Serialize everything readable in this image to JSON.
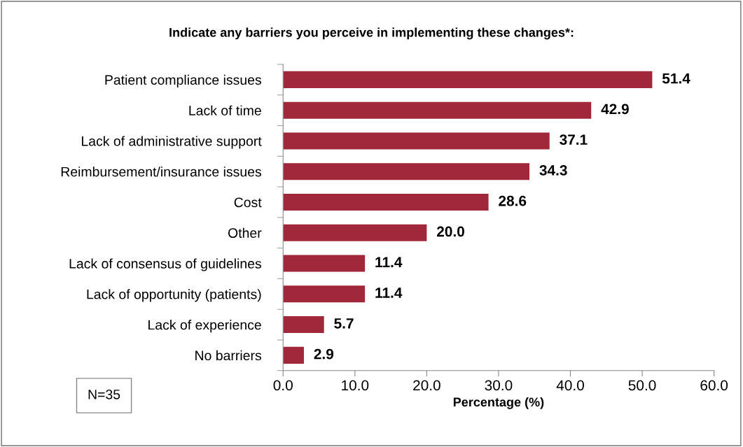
{
  "chart_data": {
    "type": "bar",
    "orientation": "horizontal",
    "title": "Indicate any barriers you perceive in implementing these changes*:",
    "xlabel": "Percentage (%)",
    "categories": [
      "Patient compliance issues",
      "Lack of time",
      "Lack of administrative support",
      "Reimbursement/insurance issues",
      "Cost",
      "Other",
      "Lack of consensus of guidelines",
      "Lack of opportunity (patients)",
      "Lack of experience",
      "No barriers"
    ],
    "values": [
      51.4,
      42.9,
      37.1,
      34.3,
      28.6,
      20.0,
      11.4,
      11.4,
      5.7,
      2.9
    ],
    "value_labels": [
      "51.4",
      "42.9",
      "37.1",
      "34.3",
      "28.6",
      "20.0",
      "11.4",
      "11.4",
      "5.7",
      "2.9"
    ],
    "color": "#a0283a",
    "xlim": [
      0,
      60
    ],
    "xticks": [
      {
        "value": 0,
        "label": "0.0"
      },
      {
        "value": 10,
        "label": "10.0"
      },
      {
        "value": 20,
        "label": "20.0"
      },
      {
        "value": 30,
        "label": "30.0"
      },
      {
        "value": 40,
        "label": "40.0"
      },
      {
        "value": 50,
        "label": "50.0"
      },
      {
        "value": 60,
        "label": "60.0"
      }
    ],
    "grid": false,
    "legend": false,
    "annotations": [
      "N=35"
    ]
  }
}
